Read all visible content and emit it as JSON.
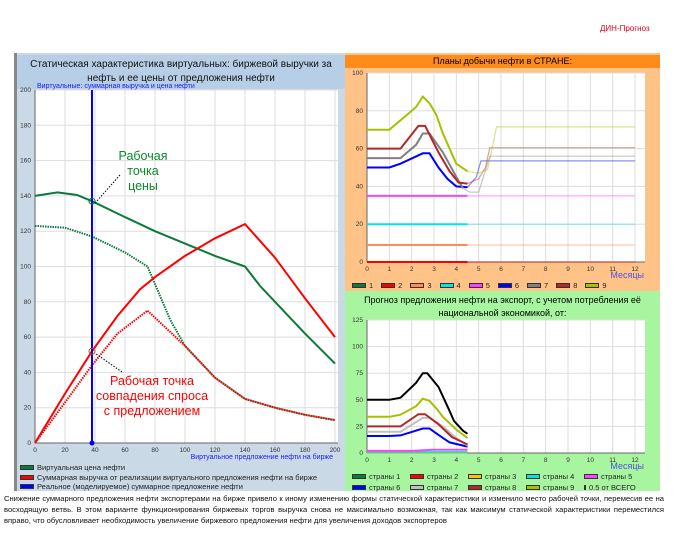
{
  "brand": "ДИН-Прогноз",
  "description": "Снижение суммарного предложения нефти экспортерами на бирже привело к иному изменению формы статической характеристики и изменило место рабочей точки, перемесив ее на восходящую ветвь. В этом варианте функционирования биржевых торгов выручка снова не максимально возможная, так как максимум статической характеристики переместился вправо, что обусловливает необходимость увеличение биржевого предложения нефти для увеличения доходов экспортеров",
  "chart_data": [
    {
      "type": "line",
      "title": "Статическая характеристика виртуальных: биржевой выручки за нефть и ее цены от предложения нефти",
      "ylabel": "Виртуальные: суммарная выручка и цена нефти",
      "xlabel": "Виртуальное предложение нефти на бирже",
      "xlim": [
        0,
        200
      ],
      "ylim": [
        0,
        200
      ],
      "xticks": [
        0,
        20,
        40,
        60,
        80,
        100,
        120,
        140,
        160,
        180,
        200
      ],
      "yticks": [
        0,
        20,
        40,
        60,
        80,
        100,
        120,
        140,
        160,
        180,
        200
      ],
      "grid": true,
      "legend": "bottom",
      "series": [
        {
          "name": "Виртуальная цена нефти",
          "color": "#0b7a3b",
          "style": "solid",
          "points": [
            [
              0,
              140
            ],
            [
              15,
              142
            ],
            [
              28,
              140.5
            ],
            [
              38,
              137
            ],
            [
              60,
              128
            ],
            [
              80,
              120
            ],
            [
              100,
              113
            ],
            [
              120,
              106
            ],
            [
              140,
              100
            ],
            [
              150,
              89
            ],
            [
              160,
              80
            ],
            [
              180,
              62
            ],
            [
              200,
              45
            ]
          ]
        },
        {
          "name": "",
          "color": "#0b7a3b",
          "style": "dotted",
          "points": [
            [
              0,
              123
            ],
            [
              20,
              122
            ],
            [
              38,
              117
            ],
            [
              60,
              108
            ],
            [
              75,
              100
            ],
            [
              80,
              90
            ],
            [
              90,
              70
            ],
            [
              100,
              55
            ],
            [
              120,
              37
            ],
            [
              140,
              25
            ],
            [
              160,
              20
            ],
            [
              180,
              16
            ],
            [
              200,
              13
            ]
          ]
        },
        {
          "name": "Суммарная выручка от реализации виртуального предложения нефти на бирже",
          "color": "#ff0000",
          "style": "solid",
          "points": [
            [
              0,
              0
            ],
            [
              20,
              28
            ],
            [
              38,
              52
            ],
            [
              55,
              72
            ],
            [
              70,
              87
            ],
            [
              80,
              94
            ],
            [
              100,
              106
            ],
            [
              120,
              116
            ],
            [
              140,
              124
            ],
            [
              160,
              105
            ],
            [
              180,
              82
            ],
            [
              200,
              60
            ]
          ]
        },
        {
          "name": "",
          "color": "#ff0000",
          "style": "dotted",
          "points": [
            [
              0,
              0
            ],
            [
              20,
              23
            ],
            [
              38,
              44
            ],
            [
              55,
              62
            ],
            [
              75,
              75
            ],
            [
              90,
              63
            ],
            [
              100,
              55
            ],
            [
              120,
              37
            ],
            [
              140,
              25
            ],
            [
              160,
              20
            ],
            [
              180,
              16
            ],
            [
              200,
              13
            ]
          ]
        },
        {
          "name": "Реальное (моделируемое) суммарное предложение нефти",
          "color": "#0000ff",
          "style": "vertical",
          "points": [
            [
              38,
              0
            ],
            [
              38,
              200
            ]
          ]
        }
      ],
      "annotations": [
        {
          "lines": [
            "Рабочая",
            "точка",
            "цены"
          ],
          "color": "#0a8a2a",
          "target": [
            38,
            137
          ]
        },
        {
          "lines": [
            "Рабочая  точка",
            "совпадения спроса",
            "с  предложением"
          ],
          "color": "#ff0000",
          "target": [
            38,
            52
          ]
        }
      ]
    },
    {
      "type": "line",
      "title": "Планы  добычи нефти в СТРАНЕ:",
      "xlabel": "Месяцы",
      "xlim": [
        0,
        12
      ],
      "ylim": [
        0,
        100
      ],
      "xticks": [
        0,
        1,
        2,
        3,
        4,
        5,
        6,
        7,
        8,
        9,
        10,
        11,
        12
      ],
      "yticks": [
        0,
        20,
        40,
        60,
        80,
        100
      ],
      "grid": true,
      "legend": "bottom",
      "series": [
        {
          "name": "1",
          "color": "#0b7a3b",
          "actual": [
            [
              0,
              0
            ],
            [
              4.5,
              0
            ]
          ],
          "forecast": []
        },
        {
          "name": "2",
          "color": "#ff0000",
          "actual": [
            [
              0,
              0
            ],
            [
              4.5,
              0
            ]
          ],
          "forecast": [
            [
              4.5,
              0
            ],
            [
              12,
              0
            ]
          ]
        },
        {
          "name": "3",
          "color": "#ff8c50",
          "actual": [
            [
              0,
              9
            ],
            [
              4.5,
              9
            ]
          ],
          "forecast": [
            [
              4.5,
              9
            ],
            [
              12,
              9
            ]
          ]
        },
        {
          "name": "4",
          "color": "#00e5e5",
          "actual": [
            [
              0,
              20
            ],
            [
              4.5,
              20
            ]
          ],
          "forecast": [
            [
              4.5,
              20
            ],
            [
              12,
              20
            ]
          ]
        },
        {
          "name": "5",
          "color": "#ff40ff",
          "actual": [
            [
              0,
              35
            ],
            [
              4.5,
              35
            ]
          ],
          "forecast": [
            [
              4.5,
              35
            ],
            [
              12,
              35
            ]
          ]
        },
        {
          "name": "6",
          "color": "#0000ff",
          "actual": [
            [
              0,
              50
            ],
            [
              1,
              50
            ],
            [
              1.5,
              52
            ],
            [
              2.5,
              57.5
            ],
            [
              2.8,
              57.5
            ],
            [
              3.2,
              50
            ],
            [
              3.6,
              44
            ],
            [
              4,
              40
            ],
            [
              4.5,
              39.5
            ]
          ],
          "forecast": [
            [
              4.5,
              39.5
            ],
            [
              4.9,
              45
            ],
            [
              5.1,
              53.5
            ],
            [
              12,
              53.5
            ]
          ]
        },
        {
          "name": "7",
          "color": "#808080",
          "actual": [
            [
              0,
              55
            ],
            [
              1.5,
              55
            ],
            [
              2.2,
              62
            ],
            [
              2.5,
              68
            ],
            [
              2.8,
              68
            ],
            [
              3.4,
              58
            ],
            [
              4,
              45
            ],
            [
              4.3,
              39
            ]
          ],
          "forecast": [
            [
              4.3,
              39
            ],
            [
              4.6,
              37
            ],
            [
              5,
              37
            ],
            [
              5.5,
              56
            ],
            [
              12,
              56
            ]
          ]
        },
        {
          "name": "8",
          "color": "#b02828",
          "actual": [
            [
              0,
              60
            ],
            [
              1.5,
              60
            ],
            [
              2.3,
              72
            ],
            [
              2.6,
              72
            ],
            [
              3.2,
              58
            ],
            [
              3.7,
              48
            ],
            [
              4.1,
              42
            ],
            [
              4.5,
              41.5
            ]
          ],
          "forecast": [
            [
              4.5,
              41.5
            ],
            [
              5,
              44
            ],
            [
              5.3,
              50
            ],
            [
              5.5,
              60.5
            ],
            [
              12,
              60.5
            ]
          ]
        },
        {
          "name": "9",
          "color": "#a8c000",
          "actual": [
            [
              0,
              70
            ],
            [
              1,
              70
            ],
            [
              1.5,
              75
            ],
            [
              2.2,
              82
            ],
            [
              2.5,
              87.5
            ],
            [
              2.8,
              84
            ],
            [
              3.1,
              78
            ],
            [
              3.4,
              68
            ],
            [
              4,
              52
            ],
            [
              4.5,
              48
            ]
          ],
          "forecast": [
            [
              4.5,
              48
            ],
            [
              5,
              47
            ],
            [
              5.4,
              49
            ],
            [
              5.6,
              60
            ],
            [
              5.8,
              71.5
            ],
            [
              12,
              71.5
            ]
          ]
        }
      ]
    },
    {
      "type": "line",
      "title": "Прогноз предложения нефти на экспорт, с учетом потребления её национальной экономикой, от:",
      "xlabel": "Месяцы",
      "xlim": [
        0,
        12
      ],
      "ylim": [
        0,
        125
      ],
      "xticks": [
        0,
        1,
        2,
        3,
        4,
        5,
        6,
        7,
        8,
        9,
        10,
        11,
        12
      ],
      "yticks": [
        0,
        25,
        50,
        75,
        100,
        125
      ],
      "grid": true,
      "legend": "bottom",
      "series": [
        {
          "name": "страны 1",
          "color": "#0b7a3b",
          "actual": [
            [
              0,
              0
            ],
            [
              4.5,
              0
            ]
          ]
        },
        {
          "name": "страны 2",
          "color": "#ff0000",
          "actual": [
            [
              0,
              0
            ],
            [
              4.5,
              0
            ]
          ]
        },
        {
          "name": "страны 3",
          "color": "#ffc000",
          "actual": [
            [
              0,
              0
            ],
            [
              4.5,
              0
            ]
          ]
        },
        {
          "name": "страны 4",
          "color": "#00e5e5",
          "actual": [
            [
              0,
              0.8
            ],
            [
              4.5,
              0.8
            ]
          ]
        },
        {
          "name": "страны 5",
          "color": "#ff40ff",
          "actual": [
            [
              0,
              2
            ],
            [
              2,
              2
            ],
            [
              3,
              3
            ],
            [
              4.5,
              3
            ]
          ]
        },
        {
          "name": "страны 6",
          "color": "#0000ff",
          "actual": [
            [
              0,
              16
            ],
            [
              1,
              16
            ],
            [
              1.5,
              16.5
            ],
            [
              2.5,
              23
            ],
            [
              2.8,
              23
            ],
            [
              3.2,
              17
            ],
            [
              3.7,
              10
            ],
            [
              4.5,
              6
            ]
          ]
        },
        {
          "name": "страны 7",
          "color": "#c0c0c0",
          "actual": [
            [
              0,
              20
            ],
            [
              1.5,
              20
            ],
            [
              2.5,
              33
            ],
            [
              2.8,
              33
            ],
            [
              3.4,
              25
            ],
            [
              4,
              14
            ],
            [
              4.5,
              7
            ]
          ]
        },
        {
          "name": "страны 8",
          "color": "#b02828",
          "actual": [
            [
              0,
              25
            ],
            [
              1.5,
              25
            ],
            [
              2.3,
              36.5
            ],
            [
              2.6,
              36.5
            ],
            [
              3.2,
              27
            ],
            [
              3.8,
              15
            ],
            [
              4.5,
              8
            ]
          ]
        },
        {
          "name": "страны 9",
          "color": "#a8c000",
          "actual": [
            [
              0,
              34
            ],
            [
              1,
              34
            ],
            [
              1.5,
              36
            ],
            [
              2.2,
              44
            ],
            [
              2.5,
              51
            ],
            [
              2.8,
              49
            ],
            [
              3.1,
              42
            ],
            [
              3.4,
              34
            ],
            [
              4,
              22
            ],
            [
              4.5,
              14
            ]
          ]
        },
        {
          "name": "0.5 от ВСЕГО",
          "color": "#000000",
          "actual": [
            [
              0,
              50
            ],
            [
              1,
              50
            ],
            [
              1.5,
              52
            ],
            [
              2.2,
              66
            ],
            [
              2.5,
              75
            ],
            [
              2.7,
              75
            ],
            [
              3.2,
              62
            ],
            [
              3.6,
              44
            ],
            [
              3.9,
              30
            ],
            [
              4.3,
              21
            ],
            [
              4.5,
              18
            ]
          ]
        }
      ]
    }
  ]
}
